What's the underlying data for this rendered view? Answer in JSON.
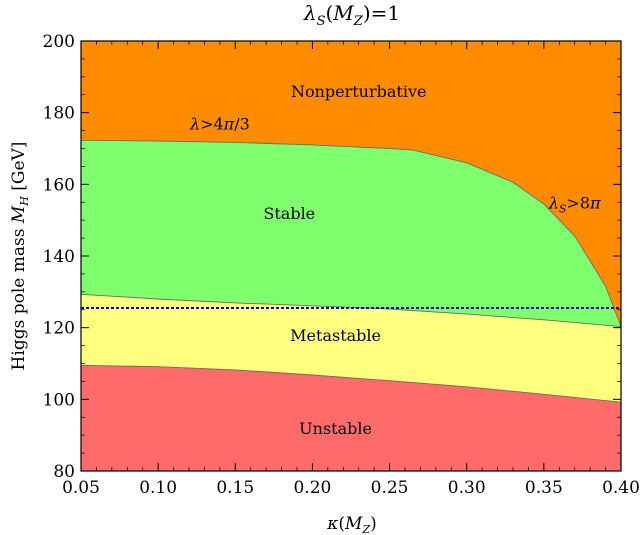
{
  "chart_data": {
    "type": "area",
    "title": "λS(MZ)=1",
    "xlabel": "κ(MZ)",
    "ylabel": "Higgs pole mass MH [GeV]",
    "xlim": [
      0.05,
      0.4
    ],
    "ylim": [
      80,
      200
    ],
    "x_ticks": [
      "0.05",
      "0.10",
      "0.15",
      "0.20",
      "0.25",
      "0.30",
      "0.35",
      "0.40"
    ],
    "y_ticks": [
      "80",
      "100",
      "120",
      "140",
      "160",
      "180",
      "200"
    ],
    "boundaries": {
      "unstable_upper": {
        "x": [
          0.05,
          0.1,
          0.15,
          0.2,
          0.25,
          0.3,
          0.35,
          0.4
        ],
        "y": [
          109.5,
          109.1,
          108.2,
          106.8,
          105.2,
          103.5,
          101.4,
          99.2
        ]
      },
      "stable_lower": {
        "x": [
          0.05,
          0.1,
          0.15,
          0.2,
          0.25,
          0.3,
          0.35,
          0.4
        ],
        "y": [
          129.3,
          128.0,
          126.9,
          126.1,
          125.2,
          123.8,
          122.2,
          120.3
        ]
      },
      "nonperturbative_lower": {
        "x": [
          0.05,
          0.1,
          0.15,
          0.2,
          0.25,
          0.265,
          0.3,
          0.33,
          0.35,
          0.37,
          0.39,
          0.4
        ],
        "y": [
          172.3,
          172.1,
          171.7,
          171.0,
          170.0,
          169.6,
          166.0,
          160.6,
          154.5,
          145.6,
          131.6,
          120.3
        ]
      }
    },
    "regions": [
      {
        "label": "Nonperturbative",
        "color": "#ff8c00",
        "at": [
          0.23,
          186
        ]
      },
      {
        "label": "Stable",
        "color": "#7fff6e",
        "at": [
          0.185,
          152
        ]
      },
      {
        "label": "Metastable",
        "color": "#ffff80",
        "at": [
          0.215,
          118
        ]
      },
      {
        "label": "Unstable",
        "color": "#ff6b6b",
        "at": [
          0.215,
          92
        ]
      }
    ],
    "annotations": [
      {
        "text": "λ>4π/3",
        "at": [
          0.14,
          177
        ]
      },
      {
        "text": "λS>8π",
        "at": [
          0.37,
          155
        ]
      }
    ],
    "reference_line": {
      "y": 125.5,
      "color": "#0000cc",
      "style": "dashed"
    },
    "grid": false
  }
}
